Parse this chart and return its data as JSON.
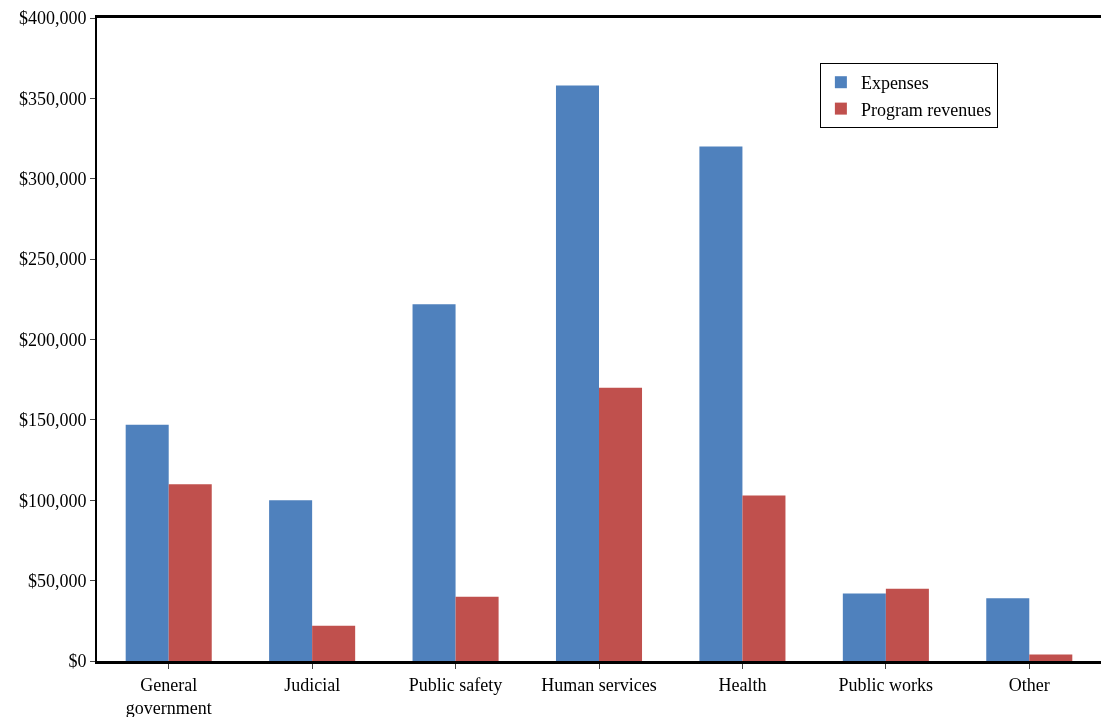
{
  "chart_data": {
    "type": "bar",
    "categories": [
      "General government",
      "Judicial",
      "Public safety",
      "Human services",
      "Health",
      "Public works",
      "Other"
    ],
    "series": [
      {
        "name": "Expenses",
        "color": "#4f81bd",
        "values": [
          147000,
          100000,
          222000,
          358000,
          320000,
          42000,
          39000
        ]
      },
      {
        "name": "Program revenues",
        "color": "#c0504d",
        "values": [
          110000,
          22000,
          40000,
          170000,
          103000,
          45000,
          4000
        ]
      }
    ],
    "ylim": [
      0,
      400000
    ],
    "yticks": [
      {
        "value": 0,
        "label": "$0"
      },
      {
        "value": 50000,
        "label": "$50,000"
      },
      {
        "value": 100000,
        "label": "$100,000"
      },
      {
        "value": 150000,
        "label": "$150,000"
      },
      {
        "value": 200000,
        "label": "$200,000"
      },
      {
        "value": 250000,
        "label": "$250,000"
      },
      {
        "value": 300000,
        "label": "$300,000"
      },
      {
        "value": 350000,
        "label": "$350,000"
      },
      {
        "value": 400000,
        "label": "$400,000"
      }
    ],
    "grid": false,
    "legend": "top right"
  }
}
